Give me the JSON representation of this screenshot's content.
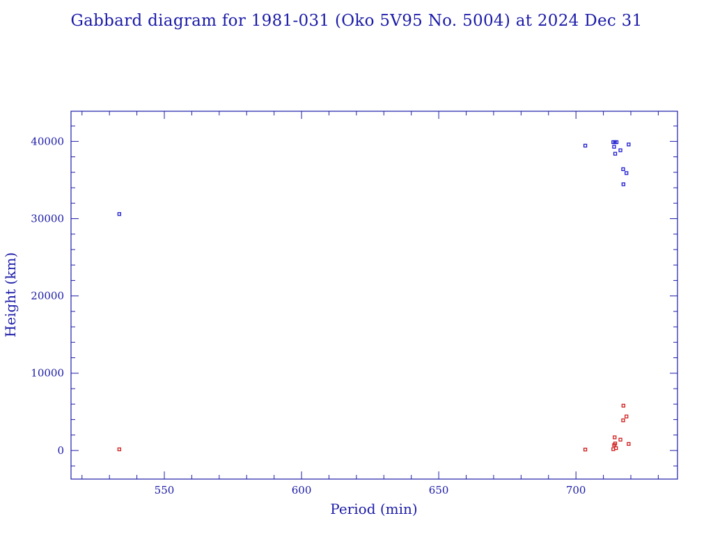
{
  "chart_data": {
    "type": "scatter",
    "title": "Gabbard diagram for 1981-031 (Oko 5V95 No. 5004) at 2024 Dec 31",
    "xlabel": "Period (min)",
    "ylabel": "Height (km)",
    "xlim": [
      516,
      737
    ],
    "ylim": [
      -3700,
      43900
    ],
    "x_ticks": [
      550,
      600,
      650,
      700
    ],
    "y_ticks": [
      0,
      10000,
      20000,
      30000,
      40000
    ],
    "x_minor_step": 10,
    "y_minor_step": 2000,
    "grid": false,
    "legend": "none",
    "series": [
      {
        "color": "#1a1ad0",
        "points": [
          [
            533.6,
            30600
          ],
          [
            703.4,
            39450
          ],
          [
            713.6,
            39900
          ],
          [
            714.2,
            39900
          ],
          [
            714.8,
            39900
          ],
          [
            713.9,
            39300
          ],
          [
            714.3,
            38400
          ],
          [
            716.2,
            38850
          ],
          [
            719.2,
            39600
          ],
          [
            717.2,
            36400
          ],
          [
            718.4,
            35900
          ],
          [
            717.3,
            34450
          ]
        ]
      },
      {
        "color": "#d01a1a",
        "points": [
          [
            533.6,
            150
          ],
          [
            703.4,
            120
          ],
          [
            713.6,
            170
          ],
          [
            714.6,
            300
          ],
          [
            713.9,
            700
          ],
          [
            714.3,
            900
          ],
          [
            714.1,
            1700
          ],
          [
            716.2,
            1400
          ],
          [
            719.2,
            850
          ],
          [
            717.2,
            3900
          ],
          [
            718.4,
            4400
          ],
          [
            717.3,
            5800
          ]
        ]
      }
    ]
  }
}
